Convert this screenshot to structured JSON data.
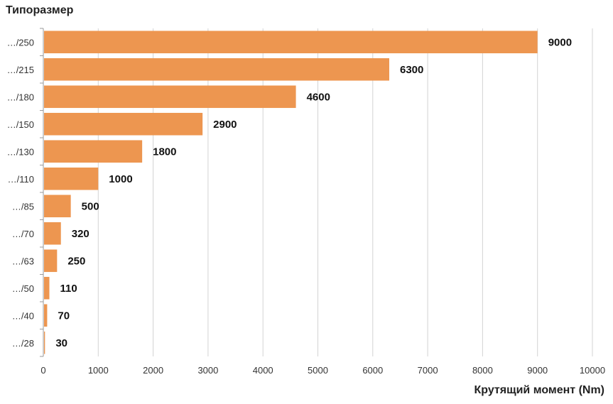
{
  "chart_data": {
    "type": "bar",
    "orientation": "horizontal",
    "ylabel": "Типоразмер",
    "xlabel": "Крутящий момент (Nm)",
    "categories": [
      "…/250",
      "…/215",
      "…/180",
      "…/150",
      "…/130",
      "…/110",
      "…/85",
      "…/70",
      "…/63",
      "…/50",
      "…/40",
      "…/28"
    ],
    "values": [
      9000,
      6300,
      4600,
      2900,
      1800,
      1000,
      500,
      320,
      250,
      110,
      70,
      30
    ],
    "data_labels": [
      "9000",
      "6300",
      "4600",
      "2900",
      "1800",
      "1000",
      "500",
      "320",
      "250",
      "110",
      "70",
      "30"
    ],
    "xlim": [
      0,
      10000
    ],
    "xticks": [
      0,
      1000,
      2000,
      3000,
      4000,
      5000,
      6000,
      7000,
      8000,
      9000,
      10000
    ],
    "xtick_labels": [
      "0",
      "1000",
      "2000",
      "3000",
      "4000",
      "5000",
      "6000",
      "7000",
      "8000",
      "9000",
      "10000"
    ],
    "grid": "vertical",
    "legend": "none",
    "bar_color": "#ED9650",
    "grid_color": "#D3D3D3"
  }
}
